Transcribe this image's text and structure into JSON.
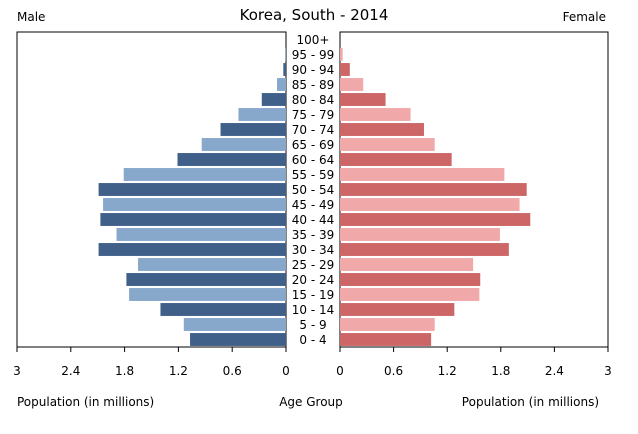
{
  "chart_data": {
    "type": "bar",
    "title": "Korea, South - 2014",
    "left_label": "Male",
    "right_label": "Female",
    "center_label": "Age Group",
    "xlabel_left": "Population (in millions)",
    "xlabel_right": "Population (in millions)",
    "xlim": [
      0,
      3
    ],
    "xticks": [
      3,
      2.4,
      1.8,
      1.2,
      0.6,
      0
    ],
    "xticks_right": [
      0,
      0.6,
      1.2,
      1.8,
      2.4,
      3
    ],
    "categories": [
      "100+",
      "95 - 99",
      "90 - 94",
      "85 - 89",
      "80 - 84",
      "75 - 79",
      "70 - 74",
      "65 - 69",
      "60 - 64",
      "55 - 59",
      "50 - 54",
      "45 - 49",
      "40 - 44",
      "35 - 39",
      "30 - 34",
      "25 - 29",
      "20 - 24",
      "15 - 19",
      "10 - 14",
      "5 - 9",
      "0 - 4"
    ],
    "series": [
      {
        "name": "Male",
        "colors": [
          "#40608a",
          "#87a7cb"
        ],
        "values": [
          0.0,
          0.01,
          0.03,
          0.1,
          0.27,
          0.53,
          0.73,
          0.94,
          1.21,
          1.81,
          2.09,
          2.04,
          2.07,
          1.89,
          2.09,
          1.65,
          1.78,
          1.75,
          1.4,
          1.14,
          1.07
        ]
      },
      {
        "name": "Female",
        "colors": [
          "#cd6666",
          "#f0a8a8"
        ],
        "values": [
          0.0,
          0.03,
          0.11,
          0.26,
          0.51,
          0.79,
          0.94,
          1.06,
          1.25,
          1.84,
          2.09,
          2.01,
          2.13,
          1.79,
          1.89,
          1.49,
          1.57,
          1.56,
          1.28,
          1.06,
          1.02
        ]
      }
    ],
    "grid": false
  }
}
